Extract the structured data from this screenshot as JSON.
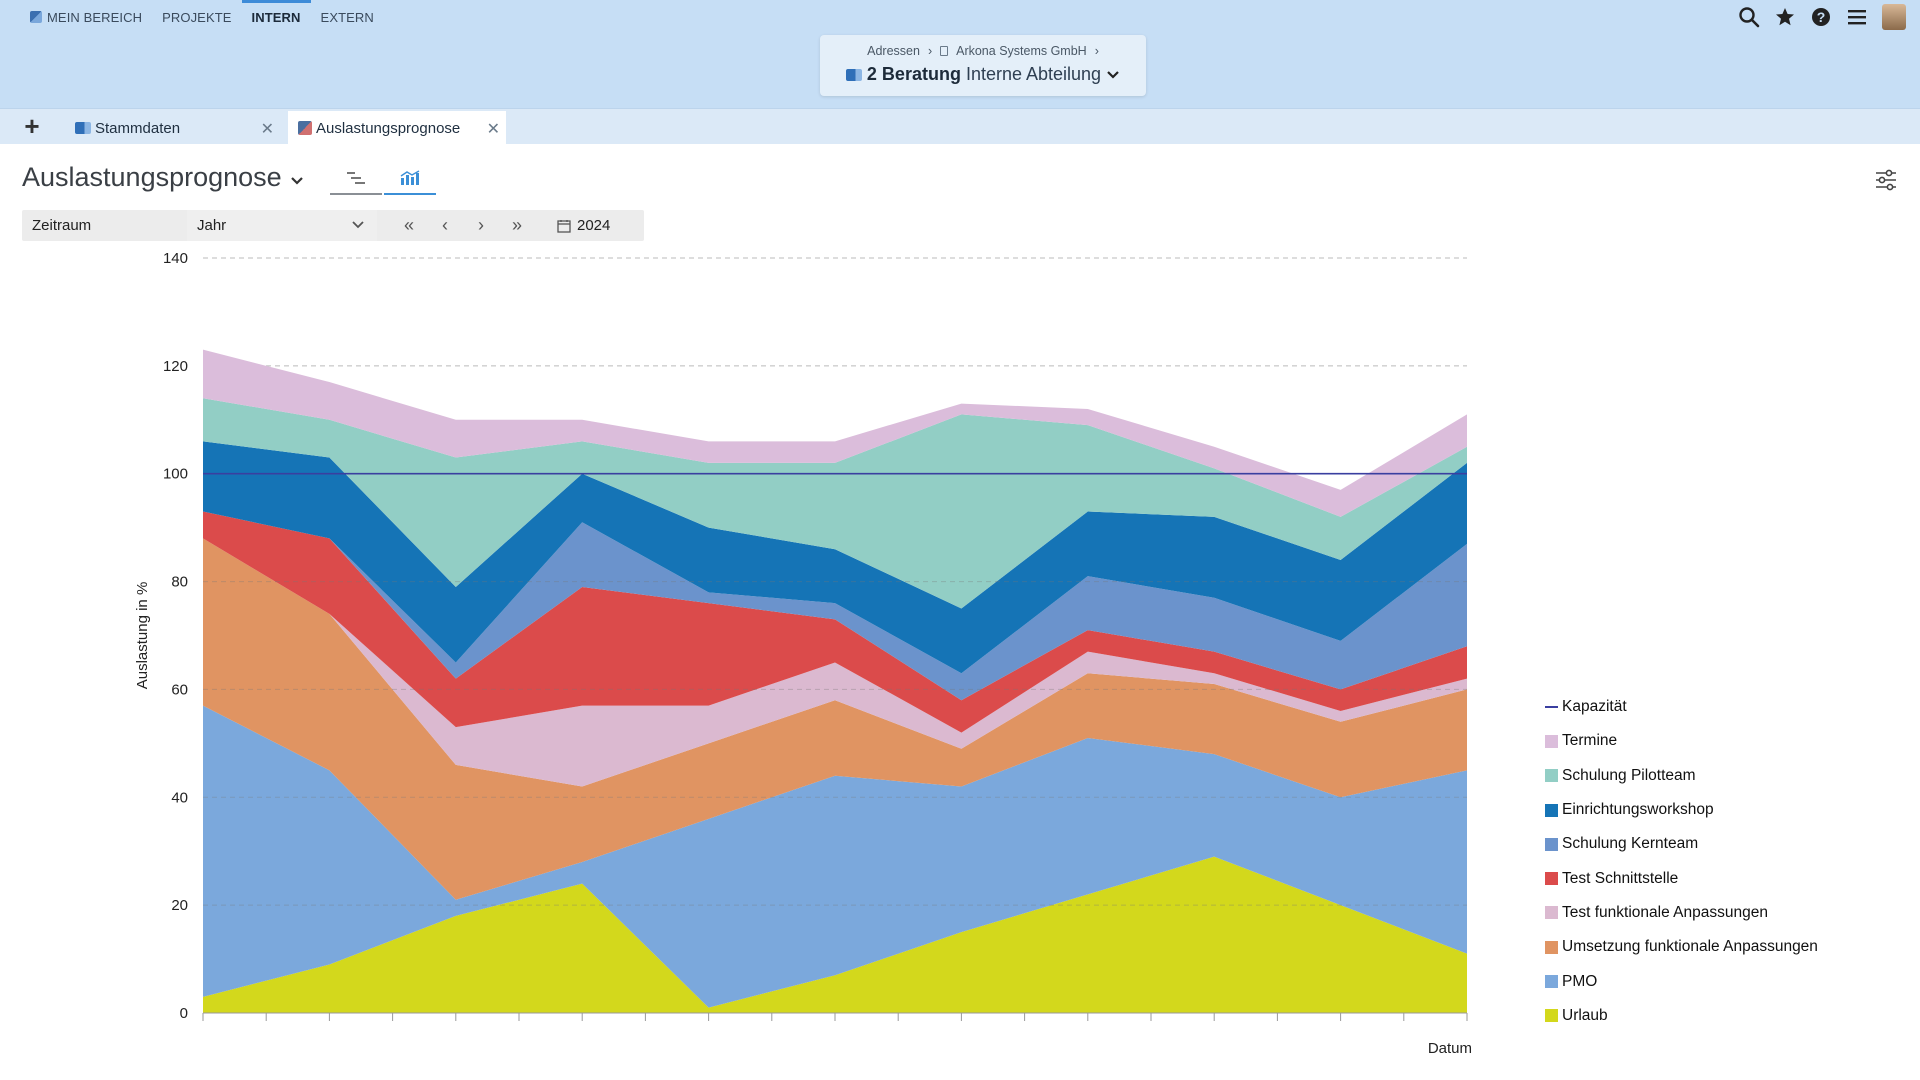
{
  "nav": {
    "items": [
      {
        "label": "MEIN BEREICH",
        "active": false,
        "icon": "app-icon"
      },
      {
        "label": "PROJEKTE",
        "active": false
      },
      {
        "label": "INTERN",
        "active": true
      },
      {
        "label": "EXTERN",
        "active": false
      }
    ]
  },
  "breadcrumb": {
    "items": [
      "Adressen",
      "Arkona Systems GmbH"
    ],
    "title_bold": "2 Beratung",
    "title_rest": "Interne Abteilung"
  },
  "tabs": [
    {
      "label": "Stammdaten",
      "active": false
    },
    {
      "label": "Auslastungsprognose",
      "active": true
    }
  ],
  "page": {
    "title": "Auslastungsprognose"
  },
  "filter": {
    "label": "Zeitraum",
    "period": "Jahr",
    "year": "2024"
  },
  "chart_data": {
    "type": "area",
    "stacked": true,
    "ylabel": "Auslastung in %",
    "xlabel": "Datum",
    "ylim": [
      0,
      140
    ],
    "yticks": [
      0,
      20,
      40,
      60,
      80,
      100,
      120,
      140
    ],
    "grid": "dashed-horizontal",
    "legend_position": "right",
    "x_count": 11,
    "capacity": {
      "name": "Kapazität",
      "value": 100,
      "color": "#3a3fa0"
    },
    "series": [
      {
        "name": "Urlaub",
        "color": "#d3d81c",
        "values": [
          3,
          9,
          18,
          24,
          1,
          7,
          15,
          22,
          29,
          20,
          11
        ]
      },
      {
        "name": "PMO",
        "color": "#7ba8dc",
        "values": [
          54,
          36,
          3,
          4,
          35,
          37,
          27,
          29,
          19,
          20,
          34
        ]
      },
      {
        "name": "Umsetzung funktionale Anpassungen",
        "color": "#e09462",
        "values": [
          31,
          29,
          25,
          14,
          14,
          14,
          7,
          12,
          13,
          14,
          15
        ]
      },
      {
        "name": "Test funktionale Anpassungen",
        "color": "#dbb9d0",
        "values": [
          0,
          0,
          7,
          15,
          7,
          7,
          3,
          4,
          2,
          2,
          2
        ]
      },
      {
        "name": "Test Schnittstelle",
        "color": "#db4b4b",
        "values": [
          5,
          14,
          9,
          22,
          19,
          8,
          6,
          4,
          4,
          4,
          6
        ]
      },
      {
        "name": "Schulung Kernteam",
        "color": "#6b93cc",
        "values": [
          0,
          0,
          3,
          12,
          2,
          3,
          5,
          10,
          10,
          9,
          19
        ]
      },
      {
        "name": "Einrichtungsworkshop",
        "color": "#1574b6",
        "values": [
          13,
          15,
          14,
          9,
          12,
          10,
          12,
          12,
          15,
          15,
          15
        ]
      },
      {
        "name": "Schulung Pilotteam",
        "color": "#92cec5",
        "values": [
          8,
          7,
          24,
          6,
          12,
          16,
          36,
          16,
          9,
          8,
          3
        ]
      },
      {
        "name": "Termine",
        "color": "#dbbddb",
        "values": [
          9,
          7,
          7,
          4,
          4,
          4,
          2,
          3,
          4,
          5,
          6
        ]
      }
    ]
  },
  "colors": {
    "header_bg": "#c6def5",
    "accent": "#3d8bd8"
  }
}
